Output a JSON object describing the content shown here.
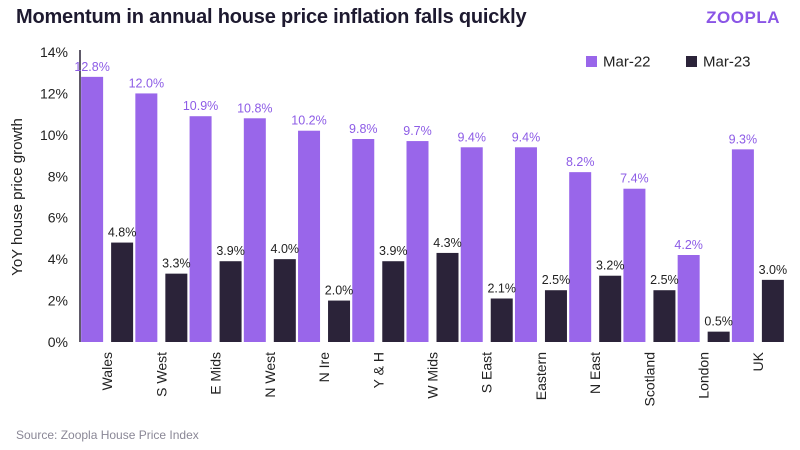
{
  "title": "Momentum in annual house price inflation falls quickly",
  "brand": "ZOOPLA",
  "source": "Source: Zoopla House Price Index",
  "colors": {
    "Mar-22": "#9966ea",
    "Mar-23": "#2b2339",
    "label_Mar-22": "#8d5ce6",
    "label_Mar-23": "#222222",
    "axis": "#2b2339",
    "grid": "#d9d9d9"
  },
  "chart_data": {
    "type": "bar",
    "ylabel": "YoY house price growth",
    "xlabel": "",
    "ylim": [
      0,
      14
    ],
    "yticks": [
      0,
      2,
      4,
      6,
      8,
      10,
      12,
      14
    ],
    "ytick_labels": [
      "0%",
      "2%",
      "4%",
      "6%",
      "8%",
      "10%",
      "12%",
      "14%"
    ],
    "grid": false,
    "legend": "top-right",
    "categories": [
      "Wales",
      "S West",
      "E Mids",
      "N West",
      "N Ire",
      "Y & H",
      "W Mids",
      "S East",
      "Eastern",
      "N East",
      "Scotland",
      "London",
      "UK"
    ],
    "series": [
      {
        "name": "Mar-22",
        "values": [
          12.8,
          12.0,
          10.9,
          10.8,
          10.2,
          9.8,
          9.7,
          9.4,
          9.4,
          8.2,
          7.4,
          4.2,
          9.3
        ],
        "labels": [
          "12.8%",
          "12.0%",
          "10.9%",
          "10.8%",
          "10.2%",
          "9.8%",
          "9.7%",
          "9.4%",
          "9.4%",
          "8.2%",
          "7.4%",
          "4.2%",
          "9.3%"
        ]
      },
      {
        "name": "Mar-23",
        "values": [
          4.8,
          3.3,
          3.9,
          4.0,
          2.0,
          3.9,
          4.3,
          2.1,
          2.5,
          3.2,
          2.5,
          0.5,
          3.0
        ],
        "labels": [
          "4.8%",
          "3.3%",
          "3.9%",
          "4.0%",
          "2.0%",
          "3.9%",
          "4.3%",
          "2.1%",
          "2.5%",
          "3.2%",
          "2.5%",
          "0.5%",
          "3.0%"
        ]
      }
    ]
  }
}
